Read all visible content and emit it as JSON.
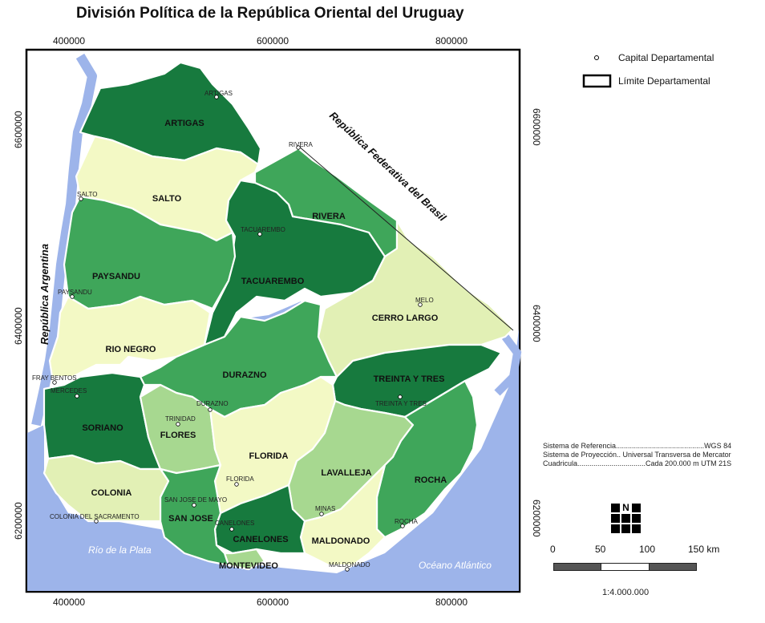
{
  "title": "División Política de la República Oriental del Uruguay",
  "ticks": {
    "x": [
      "400000",
      "600000",
      "800000"
    ],
    "y": [
      "6600000",
      "6400000",
      "6200000"
    ]
  },
  "colors": {
    "water": "#9db4ea",
    "dark": "#177a3e",
    "medium": "#3fa65a",
    "light": "#a7d890",
    "pale": "#f3f9c5",
    "paleb": "#e2f0b5"
  },
  "departments": [
    {
      "name": "ARTIGAS",
      "capital": "ARTIGAS",
      "fill": "#177a3e"
    },
    {
      "name": "SALTO",
      "capital": "SALTO",
      "fill": "#f3f9c5"
    },
    {
      "name": "RIVERA",
      "capital": "RIVERA",
      "fill": "#3fa65a"
    },
    {
      "name": "TACUAREMBO",
      "capital": "TACUAREMBO",
      "fill": "#177a3e"
    },
    {
      "name": "PAYSANDU",
      "capital": "PAYSANDU",
      "fill": "#3fa65a"
    },
    {
      "name": "CERRO LARGO",
      "capital": "MELO",
      "fill": "#e2f0b5"
    },
    {
      "name": "RIO NEGRO",
      "capital": "FRAY BENTOS",
      "fill": "#f3f9c5"
    },
    {
      "name": "DURAZNO",
      "capital": "DURAZNO",
      "fill": "#3fa65a"
    },
    {
      "name": "TREINTA Y TRES",
      "capital": "TREINTA Y TRES",
      "fill": "#177a3e"
    },
    {
      "name": "SORIANO",
      "capital": "MERCEDES",
      "fill": "#177a3e"
    },
    {
      "name": "FLORES",
      "capital": "TRINIDAD",
      "fill": "#a7d890"
    },
    {
      "name": "FLORIDA",
      "capital": "FLORIDA",
      "fill": "#f3f9c5"
    },
    {
      "name": "LAVALLEJA",
      "capital": "MINAS",
      "fill": "#a7d890"
    },
    {
      "name": "ROCHA",
      "capital": "ROCHA",
      "fill": "#3fa65a"
    },
    {
      "name": "MALDONADO",
      "capital": "MALDONADO",
      "fill": "#f3f9c5"
    },
    {
      "name": "CANELONES",
      "capital": "CANELONES",
      "fill": "#177a3e"
    },
    {
      "name": "MONTEVIDEO",
      "capital": "",
      "fill": "#a7d890"
    },
    {
      "name": "SAN JOSE",
      "capital": "SAN JOSE DE MAYO",
      "fill": "#3fa65a"
    },
    {
      "name": "COLONIA",
      "capital": "COLONIA DEL SACRAMENTO",
      "fill": "#e2f0b5"
    }
  ],
  "neighbors": {
    "argentina": "República Argentina",
    "brasil": "República Federativa del Brasil",
    "plata": "Río de la Plata",
    "atlantico": "Océano Atlántico"
  },
  "legend": {
    "capital": "Capital Departamental",
    "limite": "Límite Departamental"
  },
  "info": {
    "referencia": "Sistema de Referencia............................................WGS 84",
    "proyeccion": "Sistema de Proyección.. Universal Transversa de Mercator",
    "cuadricula": "Cuadricula..................................Cada 200.000 m UTM 21S"
  },
  "north": "N",
  "scale": {
    "labels": [
      "0",
      "50",
      "100",
      "150 km"
    ],
    "ratio": "1:4.000.000"
  }
}
